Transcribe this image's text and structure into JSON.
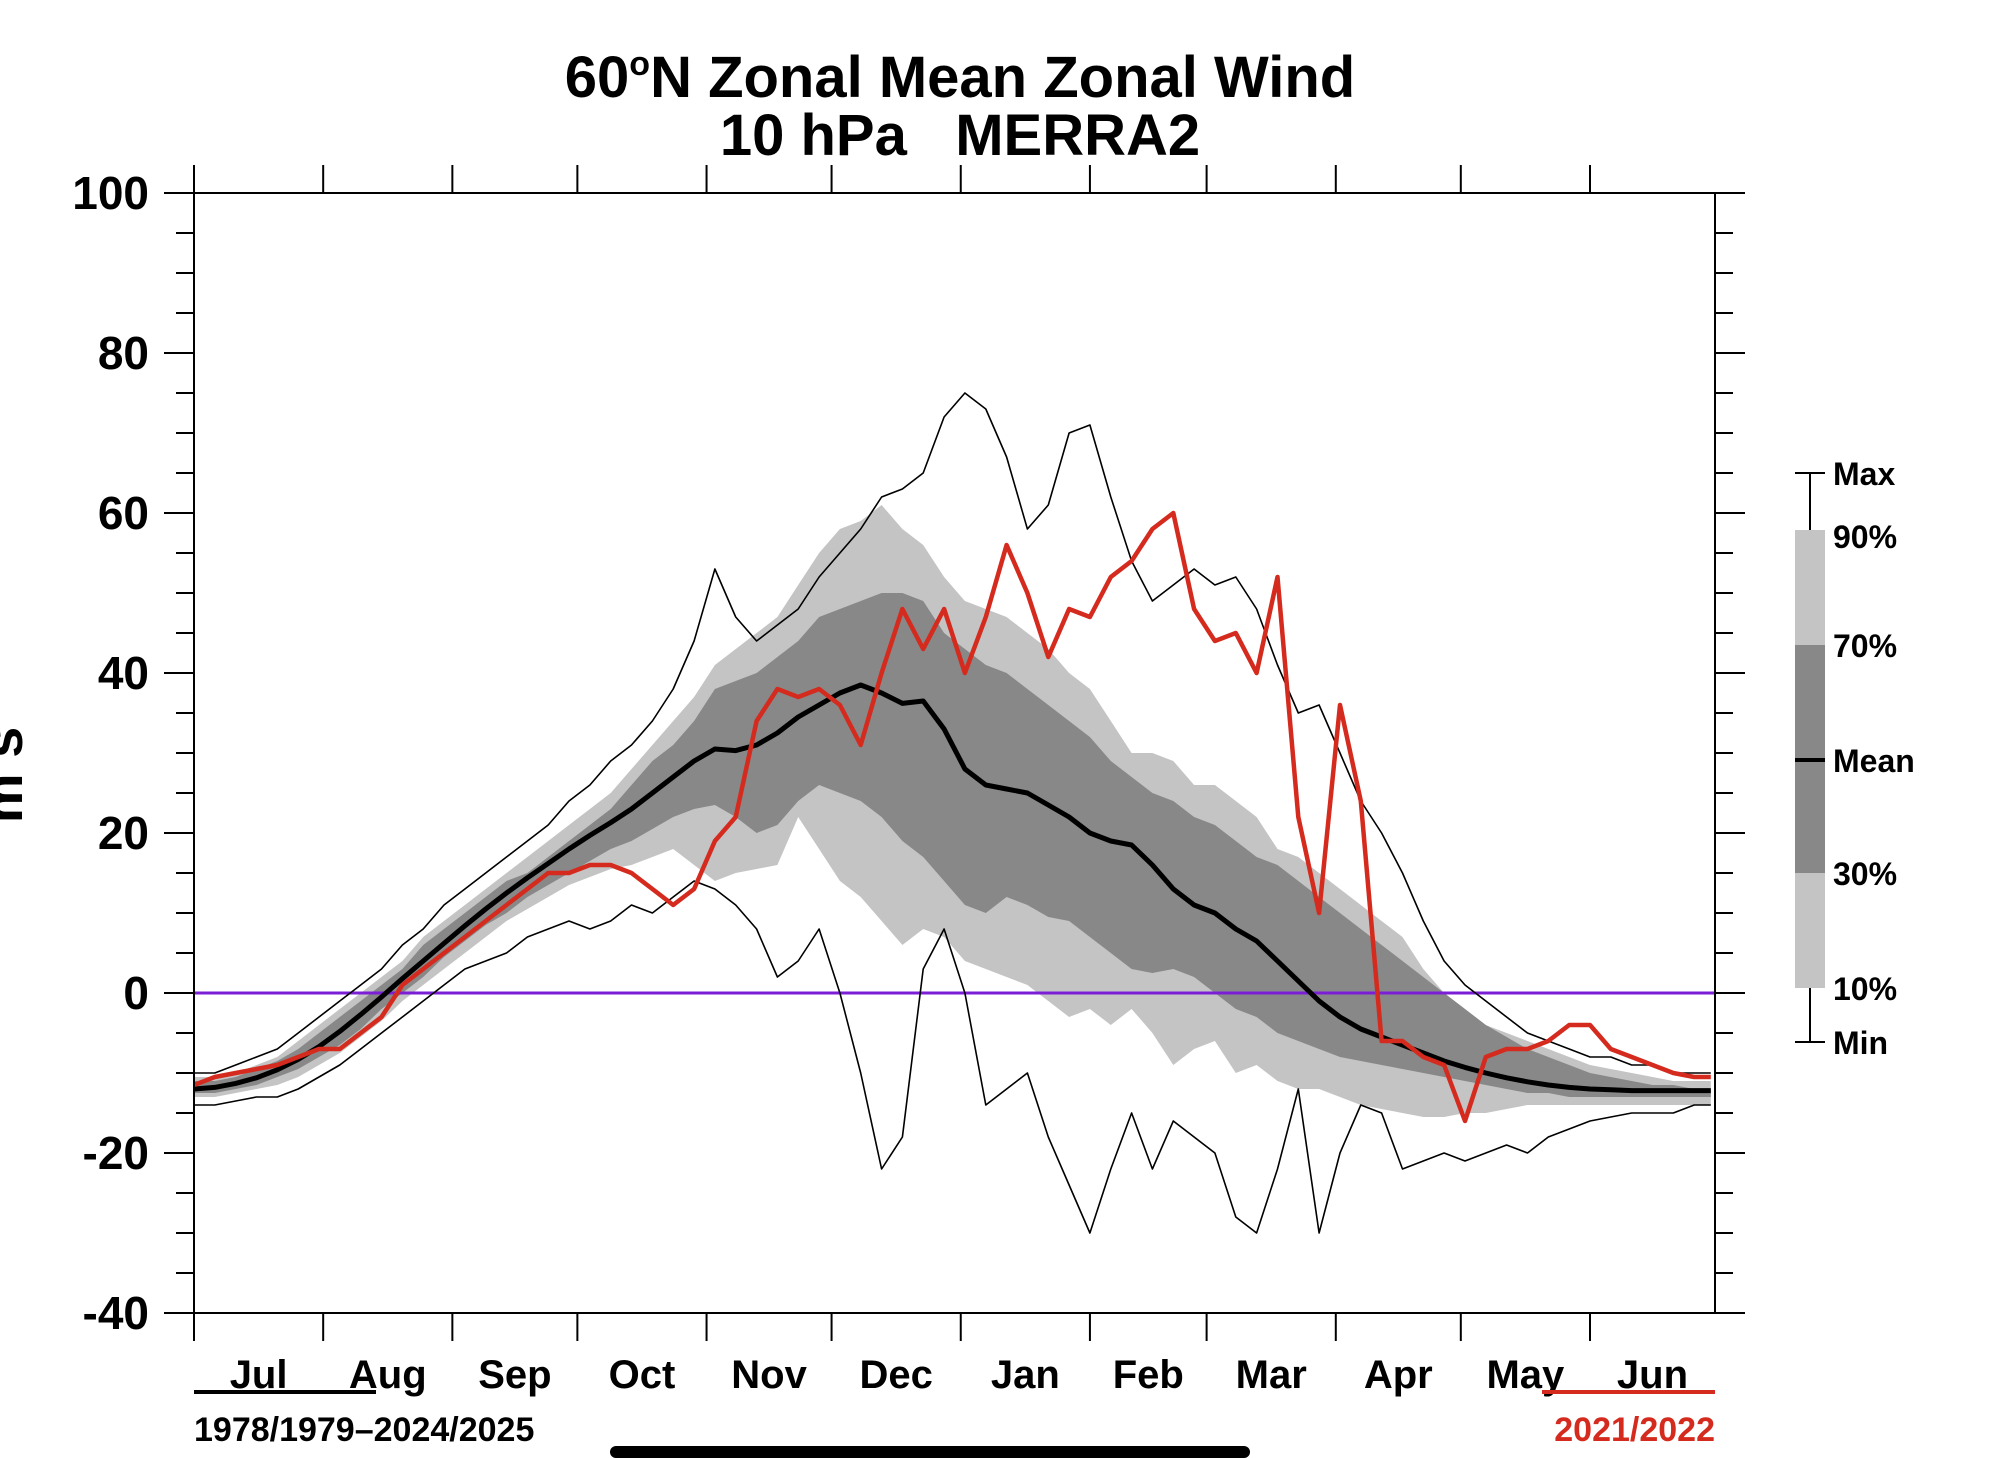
{
  "chart_data": {
    "type": "area",
    "title": "60°N Zonal Mean Zonal Wind",
    "title_parts": {
      "lat": "60",
      "deg": "o",
      "rest": "N Zonal Mean Zonal Wind"
    },
    "subtitle": "10 hPa   MERRA2",
    "xlabel": "",
    "ylabel": "m s",
    "ylim": [
      -40,
      100
    ],
    "yticks": [
      100,
      80,
      60,
      40,
      20,
      0,
      -20,
      -40
    ],
    "ytick_labels": [
      "100",
      "80",
      "60",
      "40",
      "20",
      "0",
      "-20",
      "-40"
    ],
    "xlim_days": [
      0,
      365
    ],
    "months": [
      {
        "label": "Jul",
        "start_day": 0
      },
      {
        "label": "Aug",
        "start_day": 31
      },
      {
        "label": "Sep",
        "start_day": 62
      },
      {
        "label": "Oct",
        "start_day": 92
      },
      {
        "label": "Nov",
        "start_day": 123
      },
      {
        "label": "Dec",
        "start_day": 153
      },
      {
        "label": "Jan",
        "start_day": 184
      },
      {
        "label": "Feb",
        "start_day": 215
      },
      {
        "label": "Mar",
        "start_day": 243
      },
      {
        "label": "Apr",
        "start_day": 274
      },
      {
        "label": "May",
        "start_day": 304
      },
      {
        "label": "Jun",
        "start_day": 335
      }
    ],
    "zero_line": {
      "value": 0,
      "color": "#7b1fd6"
    },
    "x_days": [
      0,
      5,
      10,
      15,
      20,
      25,
      30,
      35,
      40,
      45,
      50,
      55,
      60,
      65,
      70,
      75,
      80,
      85,
      90,
      95,
      100,
      105,
      110,
      115,
      120,
      125,
      130,
      135,
      140,
      145,
      150,
      155,
      160,
      165,
      170,
      175,
      180,
      185,
      190,
      195,
      200,
      205,
      210,
      215,
      220,
      225,
      230,
      235,
      240,
      245,
      250,
      255,
      260,
      265,
      270,
      275,
      280,
      285,
      290,
      295,
      300,
      305,
      310,
      315,
      320,
      325,
      330,
      335,
      340,
      345,
      350,
      355,
      360,
      364
    ],
    "series": [
      {
        "name": "Max",
        "color": "#000000",
        "values": [
          -10,
          -10,
          -9,
          -8,
          -7,
          -5,
          -3,
          -1,
          1,
          3,
          6,
          8,
          11,
          13,
          15,
          17,
          19,
          21,
          24,
          26,
          29,
          31,
          34,
          38,
          44,
          53,
          47,
          44,
          46,
          48,
          52,
          55,
          58,
          62,
          63,
          65,
          72,
          75,
          73,
          67,
          58,
          61,
          70,
          71,
          62,
          54,
          49,
          51,
          53,
          51,
          52,
          48,
          41,
          35,
          36,
          30,
          24,
          20,
          15,
          9,
          4,
          1,
          -1,
          -3,
          -5,
          -6,
          -7,
          -8,
          -8,
          -9,
          -9,
          -10,
          -10,
          -10
        ]
      },
      {
        "name": "90%",
        "color": "#c4c4c4",
        "values": [
          -10.5,
          -10.5,
          -10,
          -9,
          -8,
          -6,
          -4,
          -2,
          0,
          2,
          4,
          7,
          9,
          11,
          13,
          15,
          17,
          19,
          21,
          23,
          25,
          28,
          31,
          34,
          37,
          41,
          43,
          45,
          47,
          51,
          55,
          58,
          59,
          61,
          58,
          56,
          52,
          49,
          48,
          47,
          45,
          43,
          40,
          38,
          34,
          30,
          30,
          29,
          26,
          26,
          24,
          22,
          18,
          17,
          15,
          13,
          11,
          9,
          7,
          3,
          0,
          -2,
          -4,
          -5,
          -6,
          -7,
          -8,
          -9,
          -9.5,
          -10,
          -10.5,
          -11,
          -11,
          -11
        ]
      },
      {
        "name": "70%",
        "color": "#888888",
        "values": [
          -11,
          -11,
          -10.5,
          -9.5,
          -8.5,
          -7,
          -5,
          -3,
          -1,
          1,
          3,
          6,
          8,
          10,
          12,
          14,
          15,
          17,
          19,
          21,
          23,
          26,
          29,
          31,
          34,
          38,
          39,
          40,
          42,
          44,
          47,
          48,
          49,
          50,
          50,
          49,
          45,
          43,
          41,
          40,
          38,
          36,
          34,
          32,
          29,
          27,
          25,
          24,
          22,
          21,
          19,
          17,
          16,
          14,
          12,
          10,
          8,
          6,
          4,
          2,
          0,
          -2,
          -4,
          -5.5,
          -7,
          -8,
          -9,
          -10,
          -10.5,
          -11,
          -11.5,
          -11.5,
          -12,
          -12
        ]
      },
      {
        "name": "Mean",
        "color": "#000000",
        "values": [
          -12,
          -11.8,
          -11.3,
          -10.6,
          -9.6,
          -8.3,
          -6.7,
          -4.8,
          -2.7,
          -0.5,
          1.8,
          4,
          6.2,
          8.4,
          10.5,
          12.5,
          14.4,
          16.2,
          18,
          19.7,
          21.3,
          23,
          25,
          27,
          29,
          30.5,
          30.3,
          31,
          32.5,
          34.5,
          36,
          37.5,
          38.5,
          37.5,
          36.2,
          36.5,
          33,
          28,
          26,
          25.5,
          25,
          23.5,
          22,
          20,
          19,
          18.5,
          16,
          13,
          11,
          10,
          8,
          6.5,
          4,
          1.5,
          -1,
          -3,
          -4.5,
          -5.5,
          -6.5,
          -7.5,
          -8.5,
          -9.3,
          -10,
          -10.6,
          -11.1,
          -11.5,
          -11.8,
          -12,
          -12.1,
          -12.2,
          -12.2,
          -12.2,
          -12.2,
          -12.2
        ]
      },
      {
        "name": "30%",
        "color": "#888888",
        "values": [
          -12.5,
          -12.5,
          -12,
          -11.5,
          -10.5,
          -9.5,
          -8,
          -6.5,
          -4.5,
          -2,
          0,
          2,
          4.5,
          6.5,
          8.5,
          10,
          12,
          13.5,
          15,
          16.5,
          18,
          19,
          20.5,
          22,
          23,
          23.5,
          22,
          20,
          21,
          24,
          26,
          25,
          24,
          22,
          19,
          17,
          14,
          11,
          10,
          12,
          11,
          9.5,
          9,
          7,
          5,
          3,
          2.5,
          3,
          2,
          0,
          -2,
          -3,
          -5,
          -6,
          -7,
          -8,
          -8.5,
          -9,
          -9.5,
          -10,
          -10.5,
          -11,
          -11.5,
          -12,
          -12.5,
          -12.5,
          -13,
          -13,
          -13,
          -13,
          -13,
          -13,
          -13,
          -13
        ]
      },
      {
        "name": "10%",
        "color": "#c4c4c4",
        "values": [
          -13,
          -13,
          -12.5,
          -12,
          -11.5,
          -10.5,
          -9,
          -7.5,
          -5.5,
          -3.5,
          -1,
          1,
          3,
          5,
          7,
          9,
          10.5,
          12,
          13.5,
          14.5,
          15.5,
          16,
          17,
          18,
          16,
          14,
          15,
          15.5,
          16,
          22,
          18,
          14,
          12,
          9,
          6,
          8,
          7,
          4,
          3,
          2,
          1,
          -1,
          -3,
          -2,
          -4,
          -2,
          -5,
          -9,
          -7,
          -6,
          -10,
          -9,
          -11,
          -12,
          -12,
          -13,
          -14,
          -14.5,
          -15,
          -15.5,
          -15.5,
          -15,
          -15,
          -14.5,
          -14,
          -14,
          -14,
          -14,
          -14,
          -14,
          -14,
          -14,
          -14,
          -14
        ]
      },
      {
        "name": "Min",
        "color": "#000000",
        "values": [
          -14,
          -14,
          -13.5,
          -13,
          -13,
          -12,
          -10.5,
          -9,
          -7,
          -5,
          -3,
          -1,
          1,
          3,
          4,
          5,
          7,
          8,
          9,
          8,
          9,
          11,
          10,
          12,
          14,
          13,
          11,
          8,
          2,
          4,
          8,
          0,
          -10,
          -22,
          -18,
          3,
          8,
          0,
          -14,
          -12,
          -10,
          -18,
          -24,
          -30,
          -22,
          -15,
          -22,
          -16,
          -18,
          -20,
          -28,
          -30,
          -22,
          -12,
          -30,
          -20,
          -14,
          -15,
          -22,
          -21,
          -20,
          -21,
          -20,
          -19,
          -20,
          -18,
          -17,
          -16,
          -15.5,
          -15,
          -15,
          -15,
          -14,
          -14
        ]
      },
      {
        "name": "2021/2022",
        "color": "#d52b1e",
        "values": [
          -11.5,
          -10.5,
          -10,
          -9.5,
          -9,
          -8,
          -7,
          -7,
          -5,
          -3,
          1,
          3,
          5,
          7,
          9,
          11,
          13,
          15,
          15,
          16,
          16,
          15,
          13,
          11,
          13,
          19,
          22,
          34,
          38,
          37,
          38,
          36,
          31,
          40,
          48,
          43,
          48,
          40,
          47,
          56,
          50,
          42,
          48,
          47,
          52,
          54,
          58,
          60,
          48,
          44,
          45,
          40,
          52,
          22,
          10,
          36,
          24,
          -6,
          -6,
          -8,
          -9,
          -16,
          -8,
          -7,
          -7,
          -6,
          -4,
          -4,
          -7,
          -8,
          -9,
          -10,
          -10.5,
          -10.5
        ]
      }
    ],
    "legend": {
      "placement": "right",
      "items": [
        "Max",
        "90%",
        "70%",
        "Mean",
        "30%",
        "10%",
        "Min"
      ]
    },
    "period_labels": {
      "climatology": "1978/1979–2024/2025",
      "highlight": "2021/2022"
    },
    "colors": {
      "band_outer": "#c4c4c4",
      "band_inner": "#888888",
      "mean": "#000000",
      "highlight": "#d52b1e",
      "zero": "#7b1fd6"
    }
  }
}
